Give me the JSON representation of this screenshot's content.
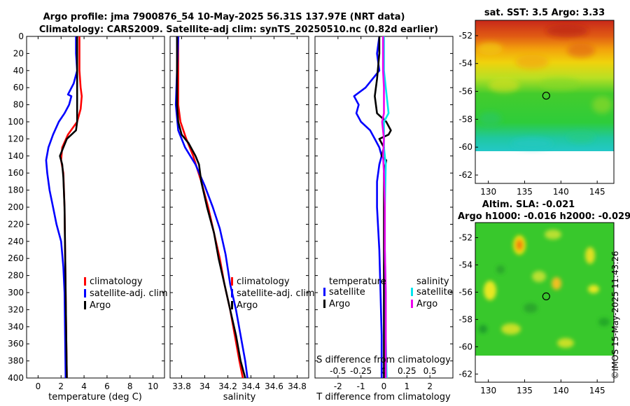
{
  "header": {
    "line1": "Argo profile: jma 7900876_54 10-May-2025 56.31S 137.97E (NRT data)",
    "line2": "Climatology: CARS2009. Satellite-adj clim: synTS_20250510.nc (0.82d earlier)"
  },
  "watermark": "©IMOS 15-May-2025 11:43:26",
  "colors": {
    "climatology": "#ff0000",
    "satellite": "#0000ff",
    "argo": "#000000",
    "sal_satellite": "#00e5ee",
    "sal_argo": "#ee00ee"
  },
  "chart_data": [
    {
      "id": "temperature",
      "type": "line",
      "xlabel": "temperature (deg C)",
      "ylabel": "",
      "xlim": [
        -1,
        11
      ],
      "ylim": [
        0,
        400
      ],
      "xticks": [
        0,
        2,
        4,
        6,
        8,
        10
      ],
      "yticks": [
        0,
        20,
        40,
        60,
        80,
        100,
        120,
        140,
        160,
        180,
        200,
        220,
        240,
        260,
        280,
        300,
        320,
        340,
        360,
        380,
        400
      ],
      "legend": [
        "climatology",
        "satellite-adj. clim",
        "Argo"
      ],
      "series": [
        {
          "name": "climatology",
          "color": "#ff0000",
          "points": [
            [
              3.6,
              0
            ],
            [
              3.6,
              20
            ],
            [
              3.6,
              40
            ],
            [
              3.7,
              60
            ],
            [
              3.8,
              70
            ],
            [
              3.7,
              85
            ],
            [
              3.4,
              100
            ],
            [
              2.6,
              115
            ],
            [
              2.1,
              130
            ],
            [
              2.0,
              145
            ],
            [
              2.2,
              160
            ],
            [
              2.3,
              200
            ],
            [
              2.35,
              250
            ],
            [
              2.4,
              300
            ],
            [
              2.45,
              350
            ],
            [
              2.5,
              400
            ]
          ]
        },
        {
          "name": "satellite-adj. clim",
          "color": "#0000ff",
          "points": [
            [
              3.3,
              0
            ],
            [
              3.3,
              20
            ],
            [
              3.4,
              40
            ],
            [
              3.1,
              55
            ],
            [
              2.6,
              68
            ],
            [
              2.9,
              70
            ],
            [
              2.7,
              80
            ],
            [
              2.3,
              90
            ],
            [
              1.8,
              100
            ],
            [
              1.3,
              115
            ],
            [
              0.9,
              130
            ],
            [
              0.7,
              145
            ],
            [
              0.8,
              160
            ],
            [
              1.0,
              180
            ],
            [
              1.3,
              200
            ],
            [
              1.6,
              220
            ],
            [
              2.0,
              240
            ],
            [
              2.2,
              270
            ],
            [
              2.3,
              300
            ],
            [
              2.35,
              350
            ],
            [
              2.4,
              400
            ]
          ]
        },
        {
          "name": "Argo",
          "color": "#000000",
          "points": [
            [
              3.4,
              0
            ],
            [
              3.4,
              20
            ],
            [
              3.4,
              40
            ],
            [
              3.4,
              60
            ],
            [
              3.4,
              80
            ],
            [
              3.4,
              100
            ],
            [
              3.3,
              110
            ],
            [
              2.5,
              120
            ],
            [
              2.2,
              130
            ],
            [
              1.9,
              140
            ],
            [
              2.1,
              150
            ],
            [
              2.2,
              165
            ],
            [
              2.3,
              200
            ],
            [
              2.35,
              250
            ],
            [
              2.4,
              300
            ],
            [
              2.45,
              350
            ],
            [
              2.5,
              400
            ]
          ]
        }
      ]
    },
    {
      "id": "salinity",
      "type": "line",
      "xlabel": "salinity",
      "ylabel": "",
      "xlim": [
        33.7,
        34.9
      ],
      "ylim": [
        0,
        400
      ],
      "xticks": [
        33.8,
        34,
        34.2,
        34.4,
        34.6,
        34.8
      ],
      "legend": [
        "climatology",
        "satellite-adj. clim",
        "Argo"
      ],
      "series": [
        {
          "name": "climatology",
          "color": "#ff0000",
          "points": [
            [
              33.77,
              0
            ],
            [
              33.77,
              40
            ],
            [
              33.77,
              80
            ],
            [
              33.79,
              100
            ],
            [
              33.84,
              120
            ],
            [
              33.9,
              140
            ],
            [
              33.97,
              170
            ],
            [
              34.03,
              200
            ],
            [
              34.08,
              230
            ],
            [
              34.13,
              260
            ],
            [
              34.17,
              290
            ],
            [
              34.22,
              320
            ],
            [
              34.26,
              350
            ],
            [
              34.3,
              380
            ],
            [
              34.33,
              400
            ]
          ]
        },
        {
          "name": "satellite-adj. clim",
          "color": "#0000ff",
          "points": [
            [
              33.77,
              0
            ],
            [
              33.76,
              40
            ],
            [
              33.75,
              80
            ],
            [
              33.77,
              110
            ],
            [
              33.83,
              130
            ],
            [
              33.92,
              150
            ],
            [
              34.0,
              175
            ],
            [
              34.07,
              200
            ],
            [
              34.13,
              225
            ],
            [
              34.18,
              255
            ],
            [
              34.22,
              290
            ],
            [
              34.27,
              320
            ],
            [
              34.31,
              350
            ],
            [
              34.35,
              380
            ],
            [
              34.37,
              400
            ]
          ]
        },
        {
          "name": "Argo",
          "color": "#000000",
          "points": [
            [
              33.76,
              0
            ],
            [
              33.76,
              40
            ],
            [
              33.76,
              80
            ],
            [
              33.77,
              100
            ],
            [
              33.8,
              115
            ],
            [
              33.86,
              125
            ],
            [
              33.92,
              140
            ],
            [
              33.95,
              150
            ],
            [
              33.97,
              170
            ],
            [
              34.02,
              200
            ],
            [
              34.08,
              230
            ],
            [
              34.12,
              260
            ],
            [
              34.17,
              290
            ],
            [
              34.22,
              320
            ],
            [
              34.27,
              350
            ],
            [
              34.31,
              380
            ],
            [
              34.35,
              400
            ]
          ]
        }
      ]
    },
    {
      "id": "difference",
      "type": "line",
      "xlabel": "T difference from climatology",
      "ylabel": "",
      "xlim": [
        -3,
        3
      ],
      "ylim": [
        0,
        400
      ],
      "xticks": [
        -2,
        -1,
        0,
        1,
        2
      ],
      "xticklabels": [
        "-2",
        "-1",
        "0",
        "1",
        "2"
      ],
      "s_axis_label": "S difference from climatology",
      "s_ticks": [
        -0.5,
        -0.25,
        0,
        0.25,
        0.5
      ],
      "s_ticklabels": [
        "-0.5",
        "-0.25",
        "0",
        "0.25",
        "0.5"
      ],
      "s_scale": 4,
      "legend_left_title": "temperature",
      "legend_right_title": "salinity",
      "legend_left": [
        "satellite",
        "Argo"
      ],
      "legend_right": [
        "satellite",
        "Argo"
      ],
      "series": [
        {
          "name": "T satellite",
          "color": "#0000ff",
          "points": [
            [
              -0.2,
              0
            ],
            [
              -0.3,
              20
            ],
            [
              -0.2,
              40
            ],
            [
              -0.8,
              60
            ],
            [
              -1.3,
              70
            ],
            [
              -1.1,
              80
            ],
            [
              -1.2,
              90
            ],
            [
              -1.0,
              100
            ],
            [
              -0.6,
              110
            ],
            [
              -0.4,
              120
            ],
            [
              -0.2,
              130
            ],
            [
              -0.1,
              140
            ],
            [
              -0.2,
              150
            ],
            [
              -0.3,
              170
            ],
            [
              -0.3,
              200
            ],
            [
              -0.2,
              250
            ],
            [
              -0.15,
              300
            ],
            [
              -0.1,
              350
            ],
            [
              -0.1,
              400
            ]
          ]
        },
        {
          "name": "T Argo",
          "color": "#000000",
          "points": [
            [
              -0.2,
              0
            ],
            [
              -0.2,
              20
            ],
            [
              -0.3,
              50
            ],
            [
              -0.4,
              70
            ],
            [
              -0.3,
              90
            ],
            [
              0.1,
              100
            ],
            [
              0.3,
              110
            ],
            [
              0.2,
              115
            ],
            [
              -0.2,
              120
            ],
            [
              0.0,
              130
            ],
            [
              -0.1,
              140
            ],
            [
              0.1,
              145
            ],
            [
              0.0,
              160
            ],
            [
              0.0,
              200
            ],
            [
              0.0,
              250
            ],
            [
              0.0,
              300
            ],
            [
              0.0,
              350
            ],
            [
              0.0,
              400
            ]
          ]
        },
        {
          "name": "S satellite",
          "color": "#00e5ee",
          "points": [
            [
              0.0,
              0
            ],
            [
              0.0,
              40
            ],
            [
              0.02,
              60
            ],
            [
              0.04,
              80
            ],
            [
              0.05,
              90
            ],
            [
              0.0,
              100
            ],
            [
              0.0,
              130
            ],
            [
              0.02,
              150
            ],
            [
              0.01,
              200
            ],
            [
              0.01,
              250
            ],
            [
              0.02,
              300
            ],
            [
              0.02,
              350
            ],
            [
              0.03,
              400
            ]
          ]
        },
        {
          "name": "S Argo",
          "color": "#ee00ee",
          "points": [
            [
              -0.01,
              0
            ],
            [
              -0.01,
              40
            ],
            [
              0.0,
              60
            ],
            [
              0.0,
              80
            ],
            [
              0.0,
              90
            ],
            [
              -0.02,
              100
            ],
            [
              -0.01,
              110
            ],
            [
              0.0,
              120
            ],
            [
              -0.01,
              140
            ],
            [
              0.0,
              160
            ],
            [
              0.01,
              200
            ],
            [
              0.01,
              250
            ],
            [
              0.02,
              300
            ],
            [
              0.02,
              350
            ],
            [
              0.02,
              400
            ]
          ]
        }
      ]
    },
    {
      "id": "sst_map",
      "type": "heatmap",
      "title": "sat. SST: 3.5 Argo: 3.33",
      "xlim": [
        128.2,
        147.3
      ],
      "ylim": [
        -62.6,
        -50.9
      ],
      "xticks": [
        130,
        135,
        140,
        145
      ],
      "yticks": [
        -52,
        -54,
        -56,
        -58,
        -60,
        -62
      ],
      "data_lat_range": [
        -60,
        -51
      ],
      "float_position": [
        137.97,
        -56.31
      ]
    },
    {
      "id": "sla_map",
      "type": "heatmap",
      "title": "Altim. SLA: -0.021",
      "subtitle": "Argo h1000: -0.016 h2000: -0.029",
      "xlim": [
        128.2,
        147.3
      ],
      "ylim": [
        -62.6,
        -50.9
      ],
      "xticks": [
        130,
        135,
        140,
        145
      ],
      "yticks": [
        -52,
        -54,
        -56,
        -58,
        -60,
        -62
      ],
      "data_lat_range": [
        -60,
        -51
      ],
      "float_position": [
        137.97,
        -56.31
      ]
    }
  ]
}
